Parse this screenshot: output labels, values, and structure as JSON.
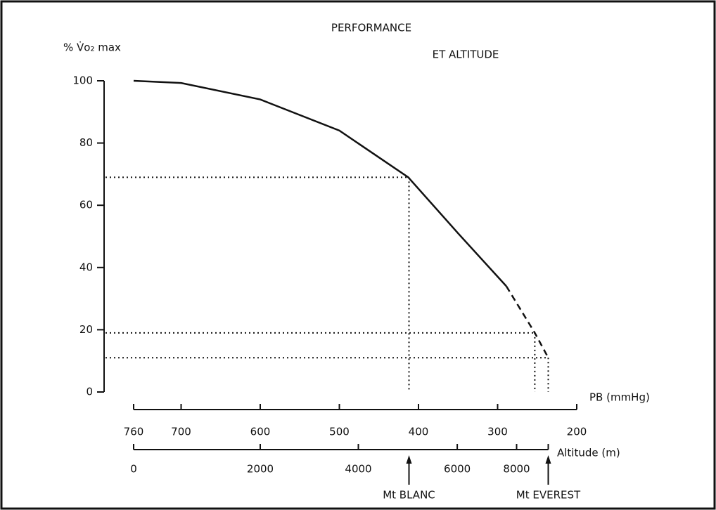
{
  "chart_data": {
    "type": "line",
    "title": [
      "PERFORMANCE",
      "ET ALTITUDE"
    ],
    "y_label": "% V̇o₂ max",
    "x_label": "PB (mmHg)",
    "x2_label": "Altitude (m)",
    "xlim": [
      760,
      200
    ],
    "xticks": [
      760,
      700,
      600,
      500,
      400,
      300,
      200
    ],
    "ylim": [
      0,
      100
    ],
    "yticks": [
      0,
      20,
      40,
      60,
      80,
      100
    ],
    "altitude_ticks": [
      {
        "value": 760,
        "label": "0"
      },
      {
        "value": 600,
        "label": "2000"
      },
      {
        "value": 476,
        "label": "4000"
      },
      {
        "value": 351,
        "label": "6000"
      },
      {
        "value": 276,
        "label": "8000"
      }
    ],
    "altitude_end": 236,
    "color": "#111111",
    "series": [
      {
        "style": "solid",
        "x": [
          760,
          700,
          600,
          500,
          413,
          350,
          289
        ],
        "values": [
          100,
          99.3,
          94,
          84,
          69,
          51,
          34
        ]
      },
      {
        "style": "dashed",
        "x": [
          289,
          253,
          236
        ],
        "values": [
          34,
          19,
          11
        ]
      }
    ],
    "reference_lines": [
      {
        "x": 412,
        "y": 69
      },
      {
        "x": 253,
        "y": 19
      },
      {
        "x": 236,
        "y": 11
      }
    ],
    "annotations": [
      {
        "text": "Mt BLANC",
        "x": 412
      },
      {
        "text": "Mt EVEREST",
        "x": 236
      }
    ]
  }
}
